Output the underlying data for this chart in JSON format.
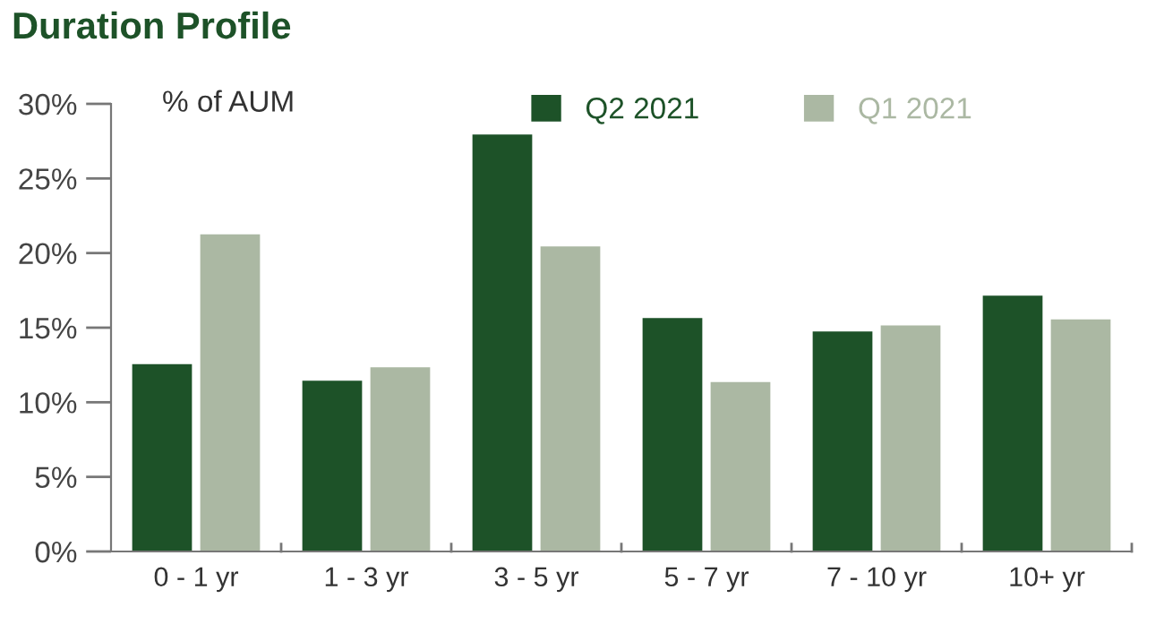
{
  "chart_data": {
    "type": "bar",
    "title": "Duration Profile",
    "ylabel": "% of AUM",
    "categories": [
      "0 - 1 yr",
      "1 - 3 yr",
      "3 - 5 yr",
      "5 - 7 yr",
      "7 - 10 yr",
      "10+ yr"
    ],
    "series": [
      {
        "name": "Q2 2021",
        "color": "#1d5228",
        "values": [
          12.6,
          11.5,
          28.0,
          15.7,
          14.8,
          17.2
        ]
      },
      {
        "name": "Q1 2021",
        "color": "#abb8a3",
        "values": [
          21.3,
          12.4,
          20.5,
          11.4,
          15.2,
          15.6
        ]
      }
    ],
    "ylim": [
      0,
      30
    ],
    "yticks": [
      {
        "value": 0,
        "label": "0%"
      },
      {
        "value": 5,
        "label": "5%"
      },
      {
        "value": 10,
        "label": "10%"
      },
      {
        "value": 15,
        "label": "15%"
      },
      {
        "value": 20,
        "label": "20%"
      },
      {
        "value": 25,
        "label": "25%"
      },
      {
        "value": 30,
        "label": "30%"
      }
    ],
    "grid": false,
    "legend": "top right"
  }
}
